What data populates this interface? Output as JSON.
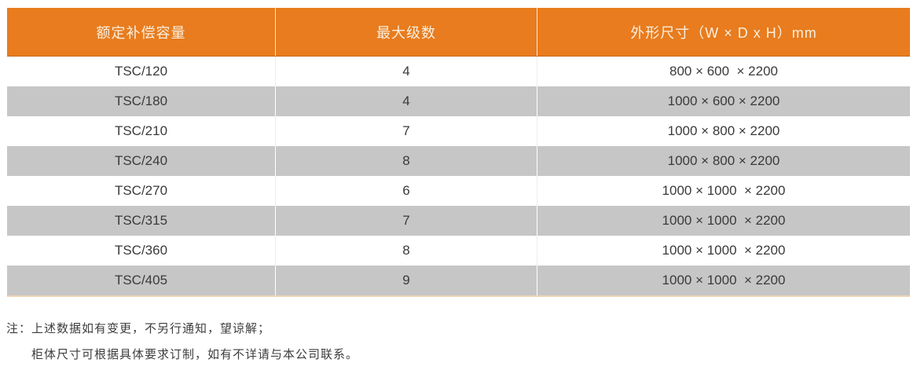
{
  "table": {
    "headers": [
      "额定补偿容量",
      "最大级数",
      "外形尺寸（W × D x H）mm"
    ],
    "rows": [
      [
        "TSC/120",
        "4",
        "800 × 600  × 2200"
      ],
      [
        "TSC/180",
        "4",
        "1000 × 600 × 2200"
      ],
      [
        "TSC/210",
        "7",
        "1000 × 800 × 2200"
      ],
      [
        "TSC/240",
        "8",
        "1000 × 800 × 2200"
      ],
      [
        "TSC/270",
        "6",
        "1000 × 1000  × 2200"
      ],
      [
        "TSC/315",
        "7",
        "1000 × 1000  × 2200"
      ],
      [
        "TSC/360",
        "8",
        "1000 × 1000  × 2200"
      ],
      [
        "TSC/405",
        "9",
        "1000 × 1000  × 2200"
      ]
    ]
  },
  "notes": {
    "prefix": "注：",
    "line1": "上述数据如有变更，不另行通知，望谅解；",
    "line2": "柜体尺寸可根据具体要求订制，如有不详请与本公司联系。"
  },
  "colors": {
    "header_bg": "#E87C1E",
    "header_text": "#F9EFE0",
    "row_alt_bg": "#C6C6C6",
    "body_text": "#3A3A3A",
    "table_bottom_border": "#F2D4B4",
    "note_text": "#3D3D3D"
  }
}
